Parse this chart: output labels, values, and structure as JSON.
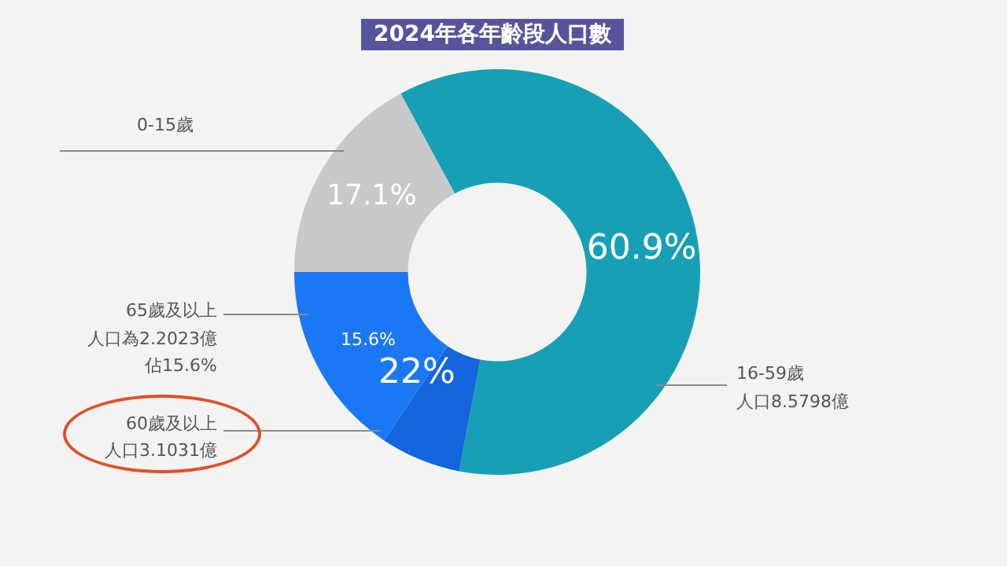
{
  "chart_data": {
    "type": "donut",
    "title": "2024年各年齡段人口數",
    "categories": [
      "16-59歲",
      null,
      "65歲及以上",
      "0-15歲"
    ],
    "values": [
      60.9,
      6.4,
      15.6,
      17.1
    ],
    "colors": [
      "#17a0b5",
      "#1565dc",
      "#1a78f5",
      "#c9c9c9"
    ],
    "value_labels": [
      "60.9%",
      null,
      "15.6%",
      "17.1%"
    ],
    "annotations": [
      "人口8.5798億",
      "人口為2.2023億",
      "佔15.6%",
      "60歲及以上",
      "人口3.1031億",
      "22%"
    ],
    "legend": false
  }
}
